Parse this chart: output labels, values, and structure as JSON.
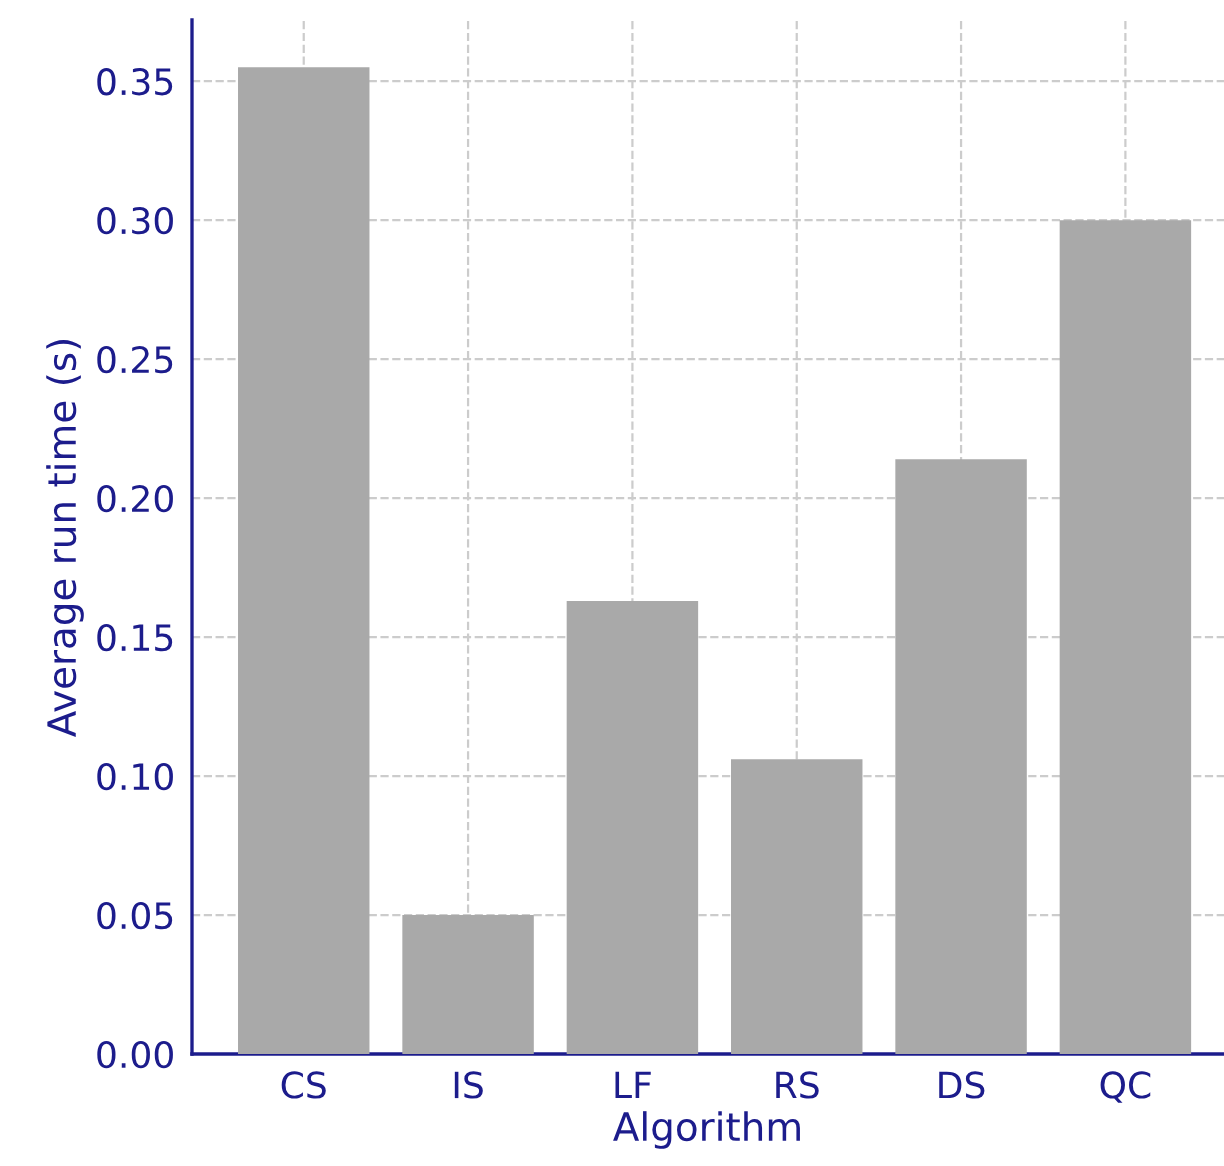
{
  "chart_data": {
    "type": "bar",
    "xlabel": "Algorithm",
    "ylabel": "Average run time (s)",
    "categories": [
      "CS",
      "IS",
      "LF",
      "RS",
      "DS",
      "QC"
    ],
    "values": [
      0.355,
      0.05,
      0.163,
      0.106,
      0.214,
      0.3
    ],
    "color": "#a9a9a9",
    "ylim": [
      0,
      0.372
    ],
    "yticks": [
      {
        "value": 0,
        "label": "0.00"
      },
      0.05,
      {
        "value": 0.1,
        "label": "0.10"
      },
      0.15,
      {
        "value": 0.2,
        "label": "0.20"
      },
      0.25,
      {
        "value": 0.3,
        "label": "0.30"
      },
      0.35
    ],
    "grid": true
  }
}
